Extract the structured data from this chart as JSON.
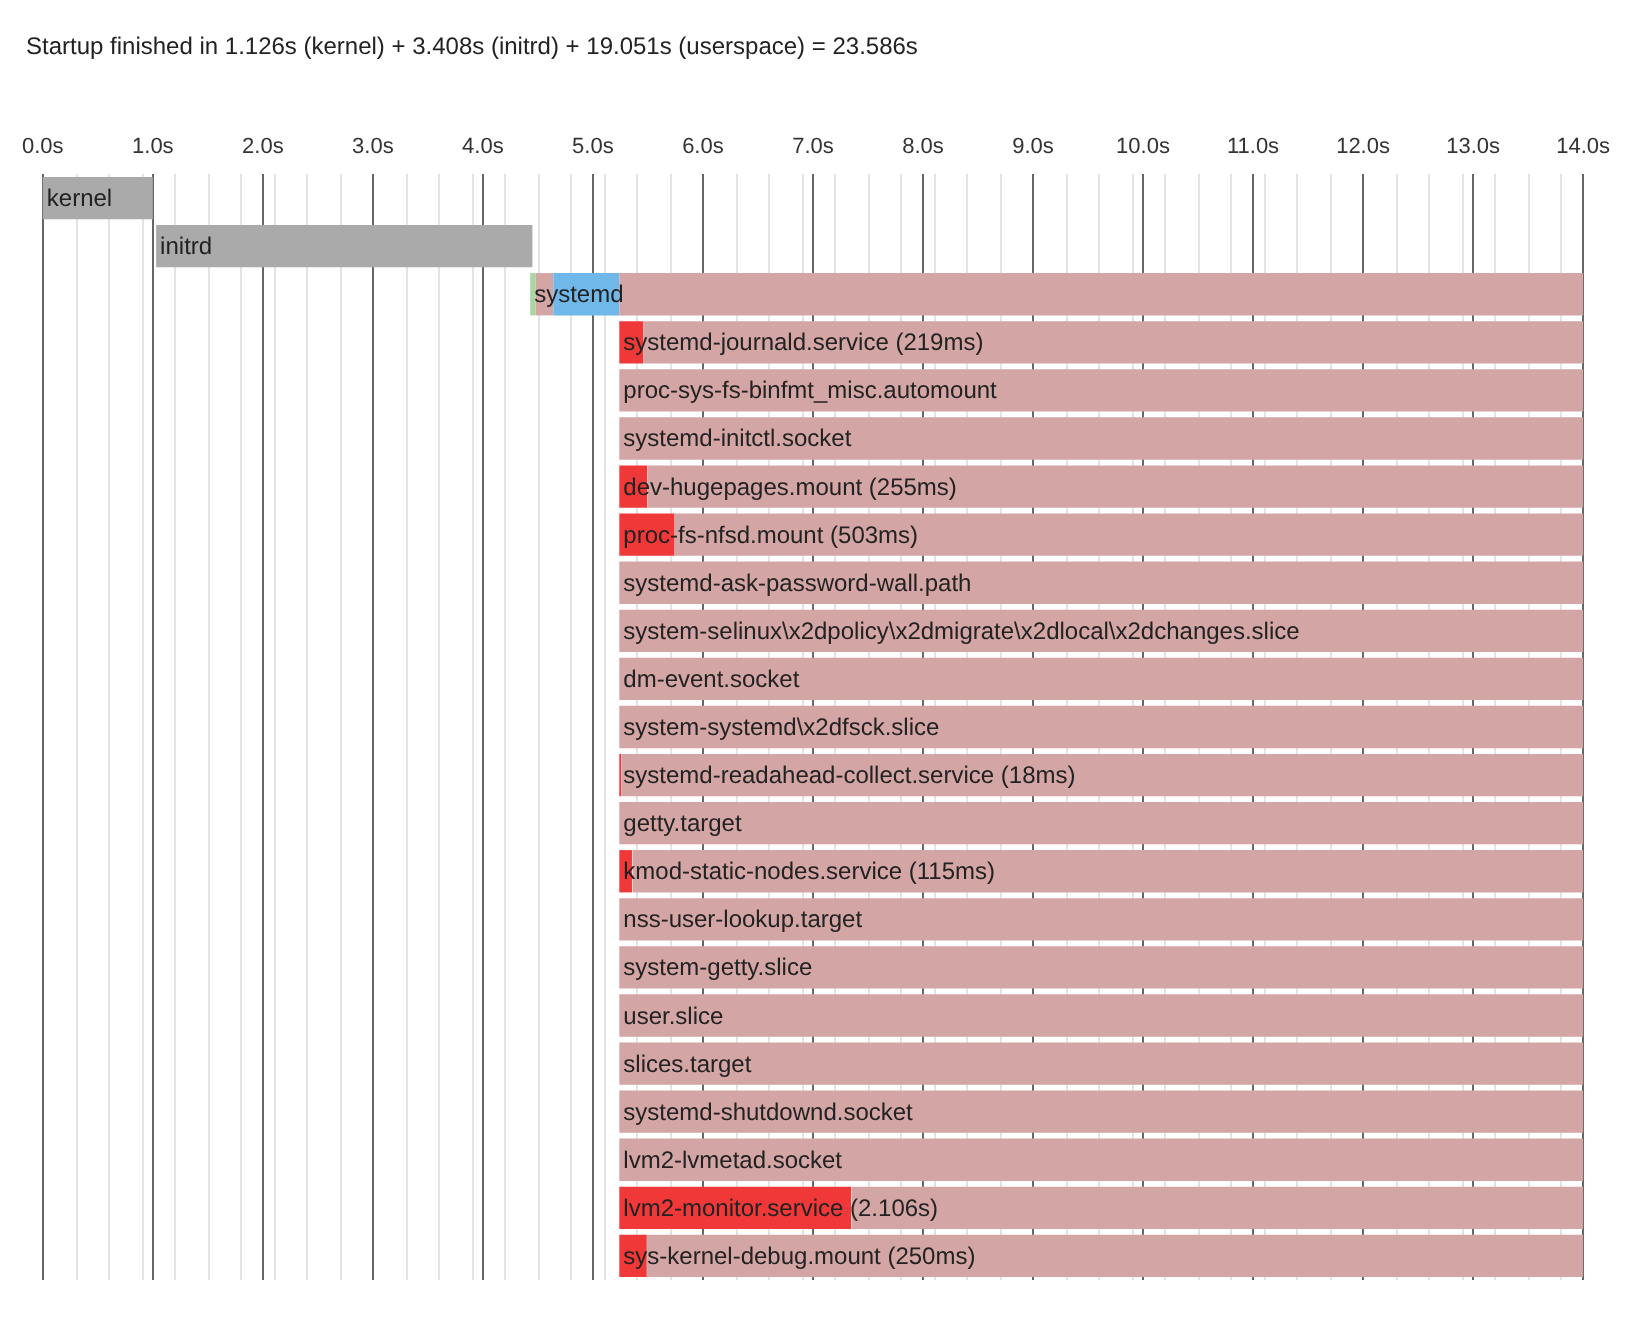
{
  "chart_data": {
    "type": "bar",
    "orientation": "horizontal",
    "title": "Startup finished in 1.126s (kernel) + 3.408s (initrd) + 19.051s (userspace) = 23.586s",
    "categories": [
      "kernel",
      "initrd",
      "systemd",
      "systemd-journald.service (219ms)",
      "proc-sys-fs-binfmt_misc.automount",
      "systemd-initctl.socket",
      "dev-hugepages.mount (255ms)",
      "proc-fs-nfsd.mount (503ms)",
      "systemd-ask-password-wall.path",
      "system-selinux\\x2dpolicy\\x2dmigrate\\x2dlocal\\x2dchanges.slice",
      "dm-event.socket",
      "system-systemd\\x2dfsck.slice",
      "systemd-readahead-collect.service (18ms)",
      "getty.target",
      "kmod-static-nodes.service (115ms)",
      "nss-user-lookup.target",
      "system-getty.slice",
      "user.slice",
      "slices.target",
      "systemd-shutdownd.socket",
      "lvm2-lvmetad.socket",
      "lvm2-monitor.service (2.106s)",
      "sys-kernel-debug.mount (250ms)"
    ],
    "series": [
      {
        "color": "#aaaaaa",
        "base": [
          0,
          1.03,
          null,
          null,
          null,
          null,
          null,
          null,
          null,
          null,
          null,
          null,
          null,
          null,
          null,
          null,
          null,
          null,
          null,
          null,
          null,
          null,
          null
        ],
        "values": [
          1.0,
          3.42,
          null,
          null,
          null,
          null,
          null,
          null,
          null,
          null,
          null,
          null,
          null,
          null,
          null,
          null,
          null,
          null,
          null,
          null,
          null,
          null,
          null
        ]
      },
      {
        "color": "#a8d8a0",
        "base": [
          null,
          null,
          4.43,
          null,
          null,
          null,
          null,
          null,
          null,
          null,
          null,
          null,
          null,
          null,
          null,
          null,
          null,
          null,
          null,
          null,
          null,
          null,
          null
        ],
        "values": [
          null,
          null,
          0.05,
          null,
          null,
          null,
          null,
          null,
          null,
          null,
          null,
          null,
          null,
          null,
          null,
          null,
          null,
          null,
          null,
          null,
          null,
          null,
          null
        ]
      },
      {
        "color": "#d4a5a5",
        "base": [
          null,
          null,
          4.48,
          null,
          null,
          null,
          null,
          null,
          null,
          null,
          null,
          null,
          null,
          null,
          null,
          null,
          null,
          null,
          null,
          null,
          null,
          null,
          null
        ],
        "values": [
          null,
          null,
          0.16,
          null,
          null,
          null,
          null,
          null,
          null,
          null,
          null,
          null,
          null,
          null,
          null,
          null,
          null,
          null,
          null,
          null,
          null,
          null,
          null
        ]
      },
      {
        "color": "#70b8ea",
        "base": [
          null,
          null,
          4.64,
          null,
          null,
          null,
          null,
          null,
          null,
          null,
          null,
          null,
          null,
          null,
          null,
          null,
          null,
          null,
          null,
          null,
          null,
          null,
          null
        ],
        "values": [
          null,
          null,
          0.6,
          null,
          null,
          null,
          null,
          null,
          null,
          null,
          null,
          null,
          null,
          null,
          null,
          null,
          null,
          null,
          null,
          null,
          null,
          null,
          null
        ]
      },
      {
        "color": "#f03838",
        "base": [
          null,
          null,
          null,
          5.24,
          null,
          null,
          5.24,
          5.24,
          null,
          null,
          null,
          null,
          5.24,
          null,
          5.24,
          null,
          null,
          null,
          null,
          null,
          null,
          5.24,
          5.24
        ],
        "values": [
          null,
          null,
          null,
          0.219,
          null,
          null,
          0.255,
          0.503,
          null,
          null,
          null,
          null,
          0.018,
          null,
          0.115,
          null,
          null,
          null,
          null,
          null,
          null,
          2.106,
          0.25
        ]
      },
      {
        "color": "#d4a5a5",
        "base": [
          null,
          null,
          5.24,
          5.46,
          5.24,
          5.24,
          5.5,
          5.74,
          5.24,
          5.24,
          5.24,
          5.24,
          5.26,
          5.24,
          5.36,
          5.24,
          5.24,
          5.24,
          5.24,
          5.24,
          5.24,
          7.35,
          5.49
        ],
        "values": [
          null,
          null,
          8.76,
          8.54,
          8.76,
          8.76,
          8.5,
          8.26,
          8.76,
          8.76,
          8.76,
          8.76,
          8.74,
          8.76,
          8.64,
          8.76,
          8.76,
          8.76,
          8.76,
          8.76,
          8.76,
          6.65,
          8.51
        ]
      }
    ],
    "xlim": [
      0,
      14
    ],
    "xticks": [
      {
        "value": 0,
        "label": "0.0s"
      },
      {
        "value": 1,
        "label": "1.0s"
      },
      {
        "value": 2,
        "label": "2.0s"
      },
      {
        "value": 3,
        "label": "3.0s"
      },
      {
        "value": 4,
        "label": "4.0s"
      },
      {
        "value": 5,
        "label": "5.0s"
      },
      {
        "value": 6,
        "label": "6.0s"
      },
      {
        "value": 7,
        "label": "7.0s"
      },
      {
        "value": 8,
        "label": "8.0s"
      },
      {
        "value": 9,
        "label": "9.0s"
      },
      {
        "value": 10,
        "label": "10.0s"
      },
      {
        "value": 11,
        "label": "11.0s"
      },
      {
        "value": 12,
        "label": "12.0s"
      },
      {
        "value": 13,
        "label": "13.0s"
      },
      {
        "value": 14,
        "label": "14.0s"
      }
    ],
    "grid": "x"
  }
}
